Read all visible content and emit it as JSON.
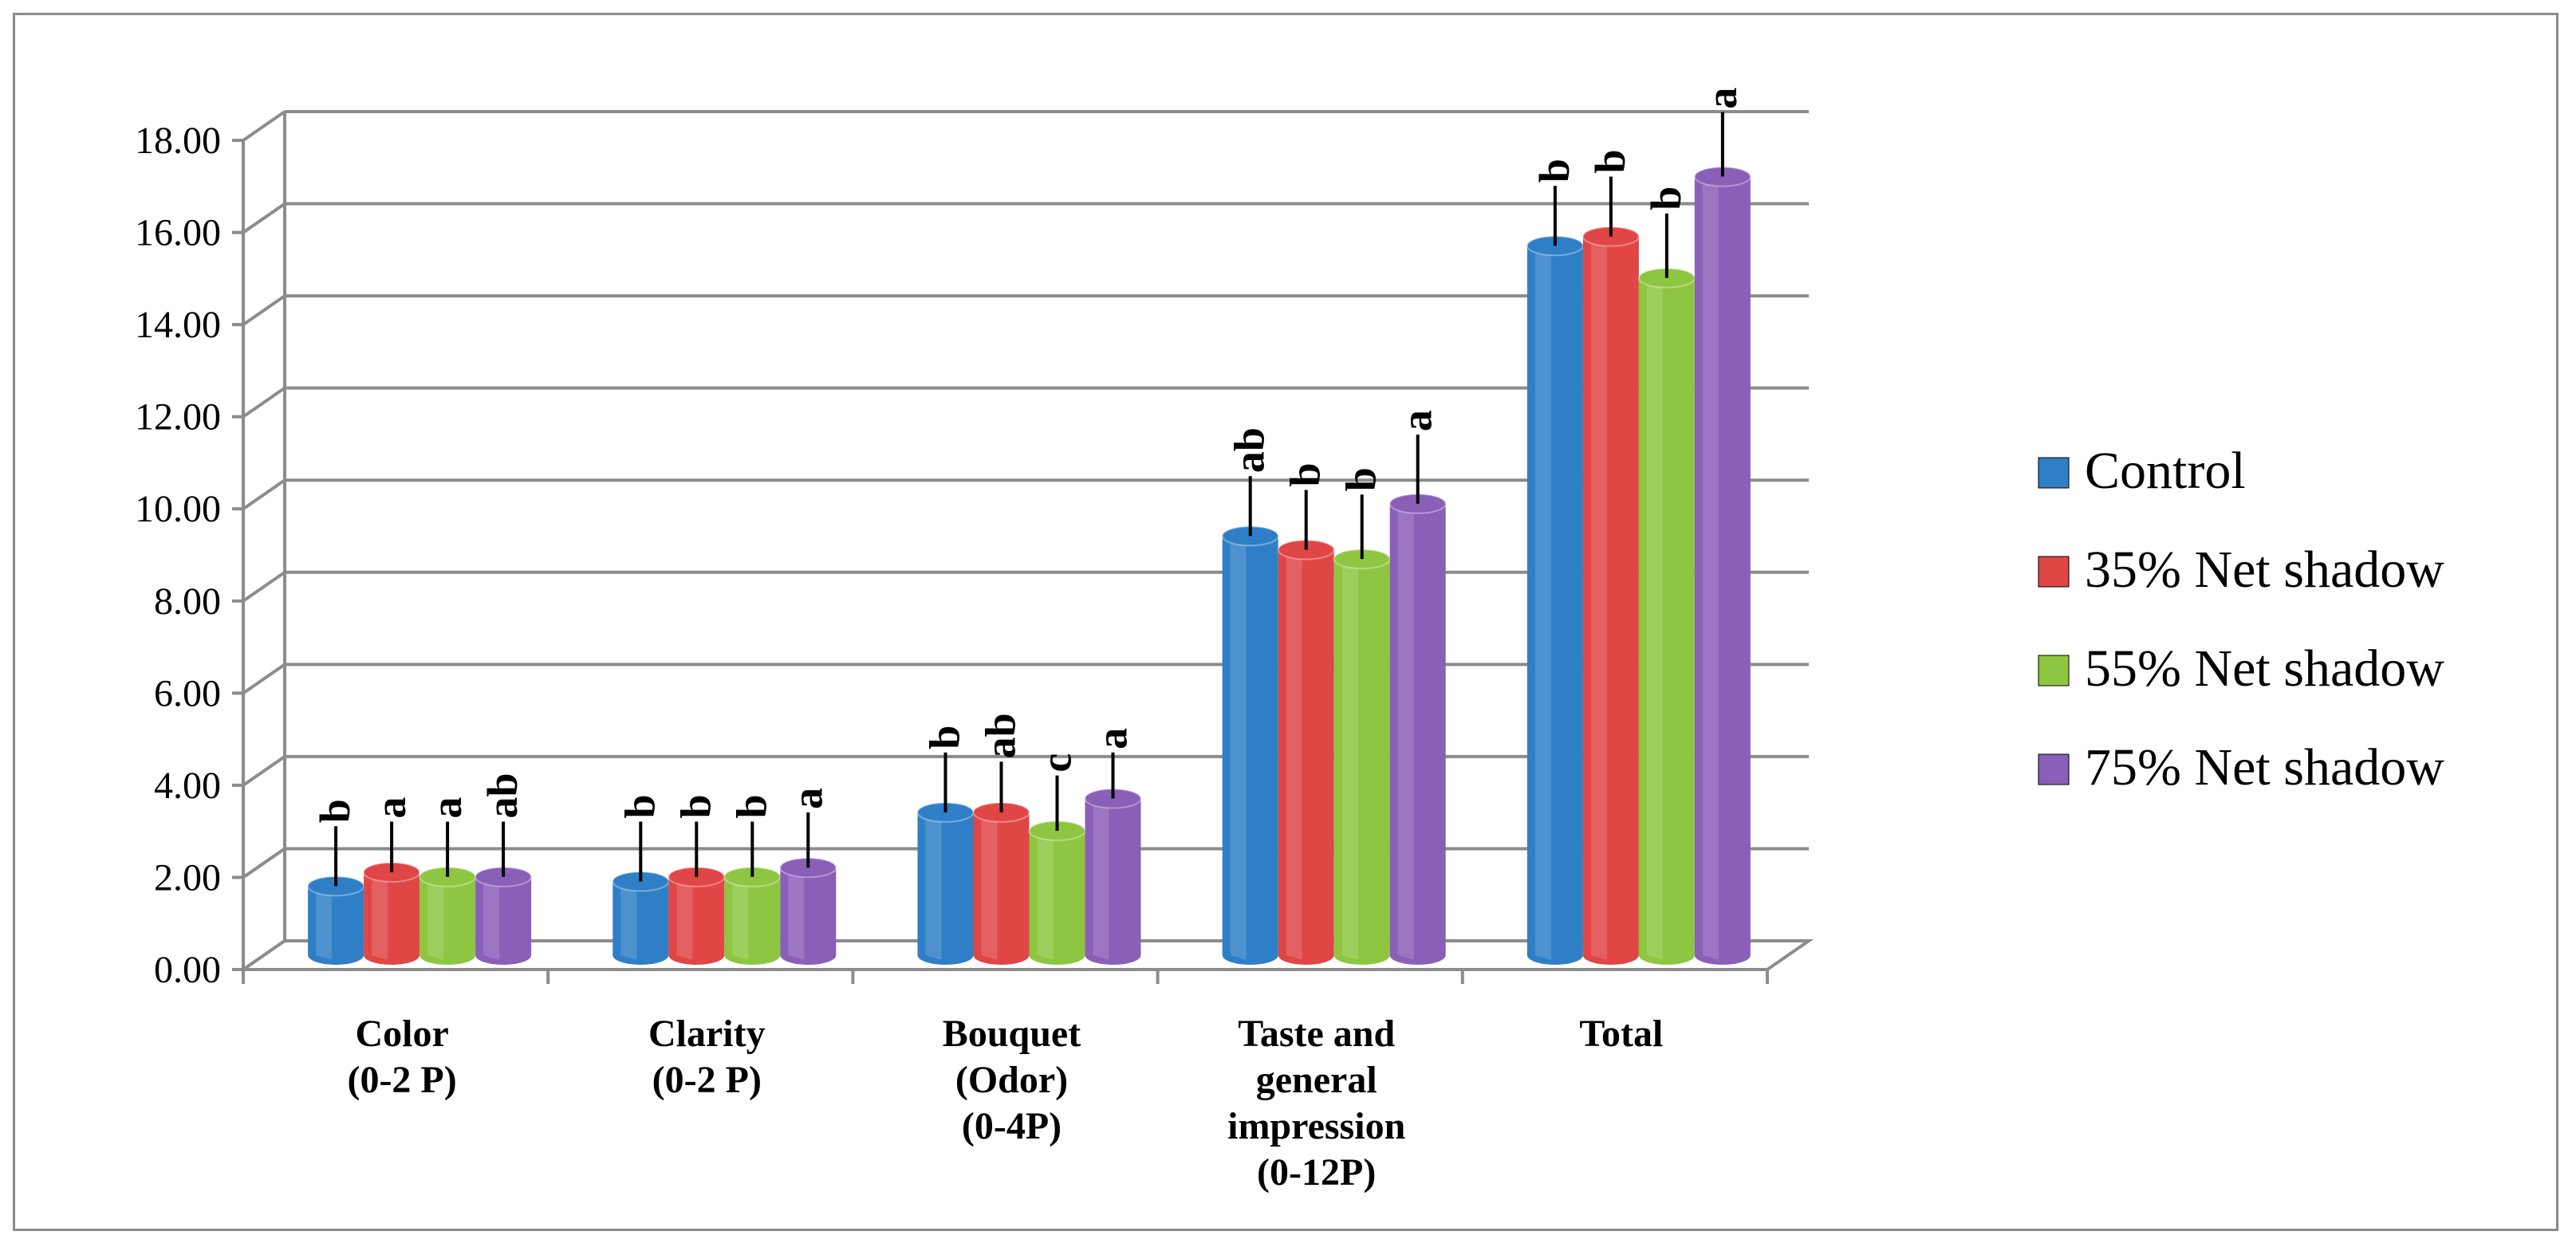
{
  "chart_data": {
    "type": "bar",
    "title": "",
    "xlabel": "",
    "ylabel": "",
    "ylim": [
      0,
      18
    ],
    "yticks": [
      "0.00",
      "2.00",
      "4.00",
      "6.00",
      "8.00",
      "10.00",
      "12.00",
      "14.00",
      "16.00",
      "18.00"
    ],
    "grid": true,
    "legend_position": "right",
    "categories": [
      [
        "Color",
        "(0-2 P)"
      ],
      [
        "Clarity",
        "(0-2 P)"
      ],
      [
        "Bouquet",
        "(Odor)",
        "(0-4P)"
      ],
      [
        "Taste and",
        "general",
        "impression",
        "(0-12P)"
      ],
      [
        "Total"
      ]
    ],
    "series": [
      {
        "name": "Control",
        "color": "#2e7fc6",
        "values": [
          1.5,
          1.6,
          3.1,
          9.1,
          15.4
        ],
        "errors": [
          1.3,
          1.3,
          1.3,
          1.3,
          1.3
        ],
        "significance": [
          "b",
          "b",
          "b",
          "ab",
          "b"
        ]
      },
      {
        "name": "35% Net shadow",
        "color": "#e04646",
        "values": [
          1.8,
          1.7,
          3.1,
          8.8,
          15.6
        ],
        "errors": [
          1.1,
          1.2,
          1.1,
          1.3,
          1.3
        ],
        "significance": [
          "a",
          "b",
          "ab",
          "b",
          "b"
        ]
      },
      {
        "name": "55% Net shadow",
        "color": "#8ec641",
        "values": [
          1.7,
          1.7,
          2.7,
          8.6,
          14.7
        ],
        "errors": [
          1.2,
          1.2,
          1.2,
          1.4,
          1.4
        ],
        "significance": [
          "a",
          "b",
          "c",
          "b",
          "b"
        ]
      },
      {
        "name": "75% Net shadow",
        "color": "#8a5fb8",
        "values": [
          1.7,
          1.9,
          3.4,
          9.8,
          16.9
        ],
        "errors": [
          1.2,
          1.2,
          1.0,
          1.5,
          1.4
        ],
        "significance": [
          "ab",
          "a",
          "a",
          "a",
          "a"
        ]
      }
    ]
  }
}
